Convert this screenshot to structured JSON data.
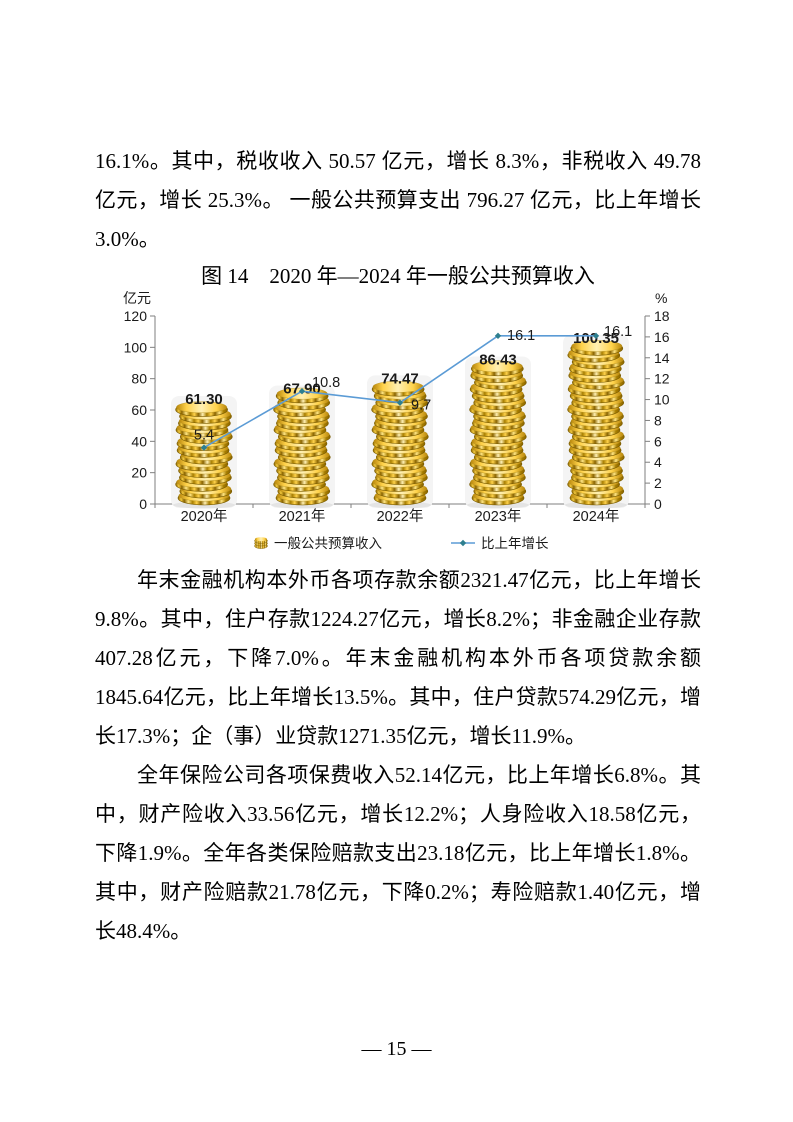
{
  "page": {
    "paragraph1": "16.1%。其中，税收收入 50.57 亿元，增长 8.3%，非税收入 49.78 亿元，增长 25.3%。 一般公共预算支出 796.27 亿元，比上年增长 3.0%。",
    "figure_title": "图 14　2020 年—2024 年一般公共预算收入",
    "paragraph2": "年末金融机构本外币各项存款余额2321.47亿元，比上年增长9.8%。其中，住户存款1224.27亿元，增长8.2%；非金融企业存款407.28亿元，下降7.0%。年末金融机构本外币各项贷款余额1845.64亿元，比上年增长13.5%。其中，住户贷款574.29亿元，增长17.3%；企（事）业贷款1271.35亿元，增长11.9%。",
    "paragraph3": "全年保险公司各项保费收入52.14亿元，比上年增长6.8%。其中，财产险收入33.56亿元，增长12.2%；人身险收入18.58亿元，下降1.9%。全年各类保险赔款支出23.18亿元，比上年增长1.8%。其中，财产险赔款21.78亿元，下降0.2%；寿险赔款1.40亿元，增长48.4%。",
    "page_number": "— 15 —"
  },
  "chart_data": {
    "type": "bar",
    "title": "图 14　2020 年—2024 年一般公共预算收入",
    "categories": [
      "2020年",
      "2021年",
      "2022年",
      "2023年",
      "2024年"
    ],
    "series": [
      {
        "name": "一般公共预算收入",
        "type": "bar",
        "axis": "left",
        "values": [
          61.3,
          67.9,
          74.47,
          86.43,
          100.35
        ],
        "labels": [
          "61.30",
          "67.90",
          "74.47",
          "86.43",
          "100.35"
        ]
      },
      {
        "name": "比上年增长",
        "type": "line",
        "axis": "right",
        "values": [
          5.4,
          10.8,
          9.7,
          16.1,
          16.1
        ],
        "labels": [
          "5.4",
          "10.8",
          "9.7",
          "16.1",
          "16.1"
        ]
      }
    ],
    "left_axis": {
      "label": "亿元",
      "min": 0,
      "max": 120,
      "step": 20
    },
    "right_axis": {
      "label": "%",
      "min": 0,
      "max": 18,
      "step": 2
    },
    "legend_position": "bottom",
    "grid": false,
    "colors": {
      "line": "#5B9BD5",
      "marker": "#2E7F8F",
      "coin_bright": "#FFD24A",
      "coin_dark": "#8A6400",
      "coin_light": "#FFF0B3",
      "axis": "#7F7F7F",
      "label_text": "#1A1A1A"
    }
  }
}
